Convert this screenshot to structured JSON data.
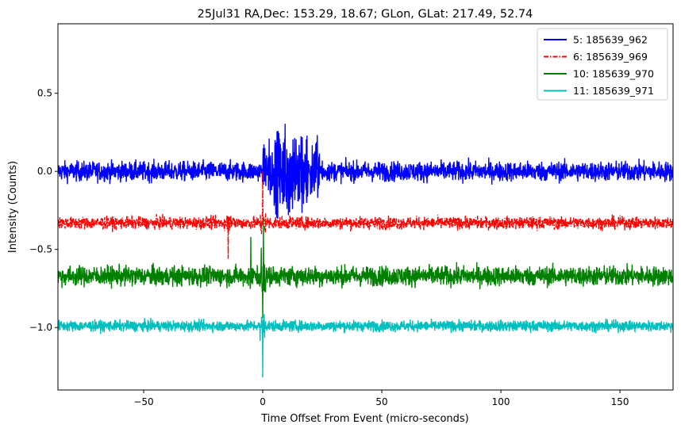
{
  "chart_data": {
    "type": "line",
    "title": "25Jul31 RA,Dec:  153.29,  18.67; GLon, GLat:  217.49,  52.74",
    "xlabel": "Time Offset From Event (micro-seconds)",
    "ylabel": "Intensity (Counts)",
    "xlim": [
      -86,
      172.3
    ],
    "ylim": [
      -1.4,
      0.945
    ],
    "xticks": [
      -50,
      0,
      50,
      100,
      150
    ],
    "xtick_labels": [
      "−50",
      "0",
      "50",
      "100",
      "150"
    ],
    "yticks": [
      0.5,
      0.0,
      -0.5,
      -1.0
    ],
    "ytick_labels": [
      "0.5",
      "0.0",
      "−0.5",
      "−1.0"
    ],
    "grid": false,
    "legend_position": "top-right",
    "series": [
      {
        "name": " 5: 185639_962",
        "color": "#0000ff",
        "style": "solid",
        "baseline": 0.0,
        "noise": 0.045,
        "burst": {
          "start": 0,
          "end": 25,
          "amplitude": 0.17,
          "max": 0.45,
          "min": -0.45
        }
      },
      {
        "name": " 6: 185639_969",
        "color": "#ff0000",
        "style": "dashdot",
        "baseline": -0.33,
        "noise": 0.028,
        "spikes": [
          {
            "x": 0,
            "y": 0.0
          },
          {
            "x": -14.5,
            "y": -0.56
          }
        ]
      },
      {
        "name": "10: 185639_970",
        "color": "#008000",
        "style": "solid",
        "baseline": -0.67,
        "noise": 0.045,
        "spikes": [
          {
            "x": 0,
            "y": -0.95
          },
          {
            "x": 0.3,
            "y": -0.3
          },
          {
            "x": -5,
            "y": -0.42
          }
        ]
      },
      {
        "name": "11: 185639_971",
        "color": "#00bfbf",
        "style": "solid",
        "baseline": -0.99,
        "noise": 0.025,
        "spikes": [
          {
            "x": 0,
            "y": -1.32
          }
        ]
      }
    ]
  }
}
